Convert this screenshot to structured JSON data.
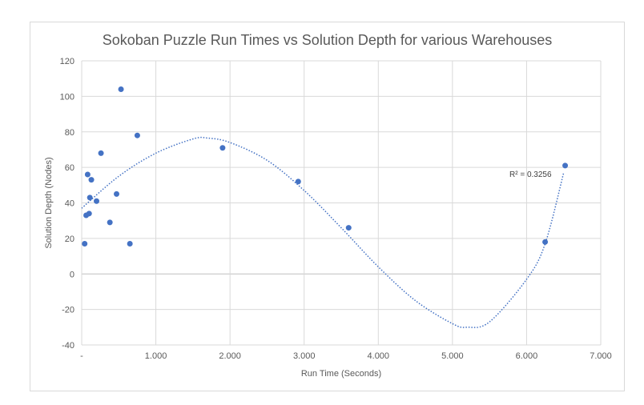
{
  "chart_data": {
    "type": "scatter",
    "title": "Sokoban Puzzle Run Times vs Solution Depth for various Warehouses",
    "xlabel": "Run Time (Seconds)",
    "ylabel": "Solution Depth (Nodes)",
    "xlim": [
      0,
      7
    ],
    "ylim": [
      -40,
      120
    ],
    "x_ticks": [
      0,
      1,
      2,
      3,
      4,
      5,
      6,
      7
    ],
    "x_tick_labels": [
      "-",
      "1.000",
      "2.000",
      "3.000",
      "4.000",
      "5.000",
      "6.000",
      "7.000"
    ],
    "y_ticks": [
      -40,
      -20,
      0,
      20,
      40,
      60,
      80,
      100,
      120
    ],
    "y_tick_labels": [
      "-40",
      "-20",
      "0",
      "20",
      "40",
      "60",
      "80",
      "100",
      "120"
    ],
    "grid": true,
    "points": [
      {
        "x": 0.04,
        "y": 17
      },
      {
        "x": 0.06,
        "y": 33
      },
      {
        "x": 0.08,
        "y": 56
      },
      {
        "x": 0.1,
        "y": 34
      },
      {
        "x": 0.11,
        "y": 43
      },
      {
        "x": 0.13,
        "y": 53
      },
      {
        "x": 0.2,
        "y": 41
      },
      {
        "x": 0.26,
        "y": 68
      },
      {
        "x": 0.38,
        "y": 29
      },
      {
        "x": 0.47,
        "y": 45
      },
      {
        "x": 0.53,
        "y": 104
      },
      {
        "x": 0.65,
        "y": 17
      },
      {
        "x": 0.75,
        "y": 78
      },
      {
        "x": 1.9,
        "y": 71
      },
      {
        "x": 2.92,
        "y": 52
      },
      {
        "x": 3.6,
        "y": 26
      },
      {
        "x": 6.25,
        "y": 18
      },
      {
        "x": 6.52,
        "y": 61
      }
    ],
    "trendline": {
      "type": "polynomial",
      "r_squared_label": "R² = 0.3256",
      "x_range": [
        0.0,
        6.5
      ],
      "samples": [
        {
          "x": 0.0,
          "y": 37
        },
        {
          "x": 0.5,
          "y": 55
        },
        {
          "x": 1.0,
          "y": 68
        },
        {
          "x": 1.5,
          "y": 76
        },
        {
          "x": 1.7,
          "y": 76.5
        },
        {
          "x": 2.0,
          "y": 74
        },
        {
          "x": 2.5,
          "y": 64
        },
        {
          "x": 3.0,
          "y": 47
        },
        {
          "x": 3.5,
          "y": 26
        },
        {
          "x": 4.0,
          "y": 4
        },
        {
          "x": 4.5,
          "y": -15
        },
        {
          "x": 5.0,
          "y": -28
        },
        {
          "x": 5.2,
          "y": -30
        },
        {
          "x": 5.5,
          "y": -27
        },
        {
          "x": 6.0,
          "y": -3
        },
        {
          "x": 6.25,
          "y": 17
        },
        {
          "x": 6.5,
          "y": 57
        }
      ]
    },
    "colors": {
      "marker": "#4472c4",
      "trendline": "#4472c4",
      "gridline": "#d9d9d9",
      "zero_line": "#bfbfbf",
      "text": "#595959"
    }
  }
}
